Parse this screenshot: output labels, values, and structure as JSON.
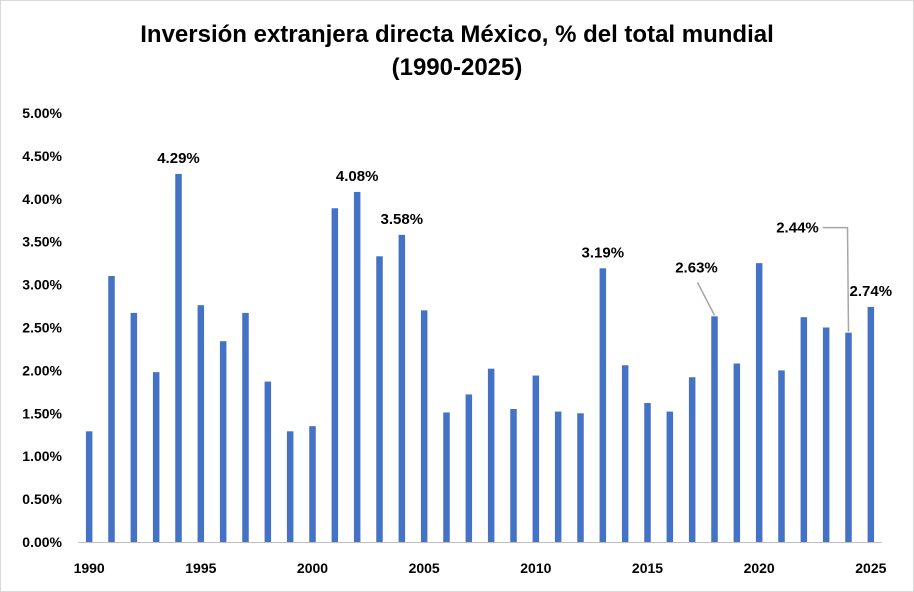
{
  "chart_data": {
    "type": "bar",
    "title_line1": "Inversión extranjera directa México, % del total mundial",
    "title_line2": "(1990-2025)",
    "xlabel": "",
    "ylabel": "",
    "ylim": [
      0,
      5
    ],
    "y_ticks": [
      "0.00%",
      "0.50%",
      "1.00%",
      "1.50%",
      "2.00%",
      "2.50%",
      "3.00%",
      "3.50%",
      "4.00%",
      "4.50%",
      "5.00%"
    ],
    "x_tick_labels": [
      "1990",
      "1995",
      "2000",
      "2005",
      "2010",
      "2015",
      "2020",
      "2025"
    ],
    "categories": [
      1990,
      1991,
      1992,
      1993,
      1994,
      1995,
      1996,
      1997,
      1998,
      1999,
      2000,
      2001,
      2002,
      2003,
      2004,
      2005,
      2006,
      2007,
      2008,
      2009,
      2010,
      2011,
      2012,
      2013,
      2014,
      2015,
      2016,
      2017,
      2018,
      2019,
      2020,
      2021,
      2022,
      2023,
      2024,
      2025
    ],
    "values": [
      1.29,
      3.1,
      2.67,
      1.98,
      4.29,
      2.76,
      2.34,
      2.67,
      1.87,
      1.29,
      1.35,
      3.89,
      4.08,
      3.33,
      3.58,
      2.7,
      1.51,
      1.72,
      2.02,
      1.55,
      1.94,
      1.52,
      1.5,
      3.19,
      2.06,
      1.62,
      1.52,
      1.92,
      2.63,
      2.08,
      3.25,
      2.0,
      2.62,
      2.5,
      2.44,
      2.74
    ],
    "series_color": "#4472C4",
    "data_labels": [
      {
        "year": 1994,
        "text": "4.29%"
      },
      {
        "year": 2002,
        "text": "4.08%"
      },
      {
        "year": 2004,
        "text": "3.58%"
      },
      {
        "year": 2013,
        "text": "3.19%"
      },
      {
        "year": 2018,
        "text": "2.63%"
      },
      {
        "year": 2024,
        "text": "2.44%"
      },
      {
        "year": 2025,
        "text": "2.74%"
      }
    ]
  }
}
